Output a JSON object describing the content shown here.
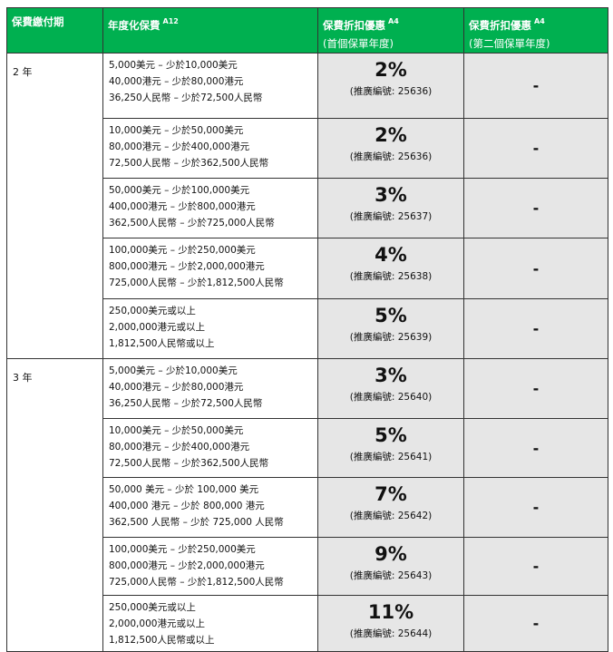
{
  "header": {
    "col1": "保費繳付期",
    "col2": "年度化保費",
    "col2_sup": "A12",
    "col3": "保費折扣優惠",
    "col3_sup": "A4",
    "col3_sub": "(首個保單年度)",
    "col4": "保費折扣優惠",
    "col4_sup": "A4",
    "col4_sub": "(第二個保單年度)"
  },
  "colors": {
    "header_bg": "#00b050",
    "discount_bg": "#e6e6e6"
  },
  "groups": [
    {
      "term": "2 年",
      "rows": [
        {
          "lines": [
            "5,000美元 – 少於10,000美元",
            "40,000港元 – 少於80,000港元",
            "36,250人民幣 – 少於72,500人民幣"
          ],
          "pct": "2%",
          "code": "(推廣編號: 25636)",
          "second": "-"
        },
        {
          "lines": [
            "10,000美元 – 少於50,000美元",
            "80,000港元 – 少於400,000港元",
            "72,500人民幣 – 少於362,500人民幣"
          ],
          "pct": "2%",
          "code": "(推廣編號: 25636)",
          "second": "-"
        },
        {
          "lines": [
            "50,000美元 – 少於100,000美元",
            "400,000港元 – 少於800,000港元",
            "362,500人民幣 – 少於725,000人民幣"
          ],
          "pct": "3%",
          "code": "(推廣編號: 25637)",
          "second": "-"
        },
        {
          "lines": [
            "100,000美元 – 少於250,000美元",
            "800,000港元 – 少於2,000,000港元",
            "725,000人民幣 – 少於1,812,500人民幣"
          ],
          "pct": "4%",
          "code": "(推廣編號: 25638)",
          "second": "-"
        },
        {
          "lines": [
            "250,000美元或以上",
            "2,000,000港元或以上",
            "1,812,500人民幣或以上"
          ],
          "pct": "5%",
          "code": "(推廣編號: 25639)",
          "second": "-"
        }
      ]
    },
    {
      "term": "3 年",
      "rows": [
        {
          "lines": [
            "5,000美元 – 少於10,000美元",
            "40,000港元 – 少於80,000港元",
            "36,250人民幣 – 少於72,500人民幣"
          ],
          "pct": "3%",
          "code": "(推廣編號: 25640)",
          "second": "-"
        },
        {
          "lines": [
            "10,000美元 – 少於50,000美元",
            "80,000港元 – 少於400,000港元",
            "72,500人民幣 – 少於362,500人民幣"
          ],
          "pct": "5%",
          "code": "(推廣編號: 25641)",
          "second": "-"
        },
        {
          "lines": [
            "50,000 美元 – 少於 100,000 美元",
            "400,000 港元 – 少於 800,000 港元",
            "362,500 人民幣 – 少於 725,000 人民幣"
          ],
          "pct": "7%",
          "code": "(推廣編號: 25642)",
          "second": "-"
        },
        {
          "lines": [
            "100,000美元 – 少於250,000美元",
            "800,000港元 – 少於2,000,000港元",
            "725,000人民幣 – 少於1,812,500人民幣"
          ],
          "pct": "9%",
          "code": "(推廣編號: 25643)",
          "second": "-"
        },
        {
          "lines": [
            "250,000美元或以上",
            "2,000,000港元或以上",
            "1,812,500人民幣或以上"
          ],
          "pct": "11%",
          "code": "(推廣編號: 25644)",
          "second": "-"
        }
      ]
    }
  ]
}
